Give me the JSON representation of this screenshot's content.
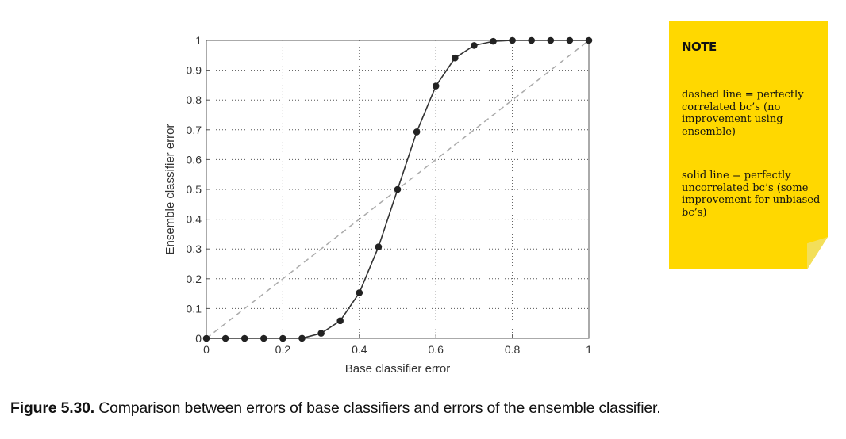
{
  "chart_data": {
    "type": "line",
    "xlabel": "Base classifier error",
    "ylabel": "Ensemble classifier error",
    "xlim": [
      0,
      1
    ],
    "ylim": [
      0,
      1
    ],
    "x_ticks": [
      0,
      0.2,
      0.4,
      0.6,
      0.8,
      1
    ],
    "x_tick_labels": [
      "0",
      "0.2",
      "0.4",
      "0.6",
      "0.8",
      "1"
    ],
    "y_ticks": [
      0,
      0.1,
      0.2,
      0.3,
      0.4,
      0.5,
      0.6,
      0.7,
      0.8,
      0.9,
      1
    ],
    "y_tick_labels": [
      "0",
      "0.1",
      "0.2",
      "0.3",
      "0.4",
      "0.5",
      "0.6",
      "0.7",
      "0.8",
      "0.9",
      "1"
    ],
    "grid": true,
    "series": [
      {
        "style": "solid-with-markers",
        "color": "#333333",
        "x": [
          0,
          0.05,
          0.1,
          0.15,
          0.2,
          0.25,
          0.3,
          0.35,
          0.4,
          0.45,
          0.5,
          0.55,
          0.6,
          0.65,
          0.7,
          0.75,
          0.8,
          0.85,
          0.9,
          0.95,
          1
        ],
        "y": [
          0,
          0,
          0,
          0,
          0,
          0.0003,
          0.017,
          0.059,
          0.153,
          0.307,
          0.5,
          0.693,
          0.847,
          0.941,
          0.983,
          0.997,
          1,
          1,
          1,
          1,
          1
        ]
      },
      {
        "style": "dashed",
        "color": "#aaaaaa",
        "x": [
          0,
          1
        ],
        "y": [
          0,
          1
        ]
      }
    ]
  },
  "note": {
    "title": "NOTE",
    "paragraph1": "dashed line = perfectly correlated bc’s (no improvement using ensemble)",
    "paragraph2": "solid line = perfectly uncorrelated bc’s (some improvement for unbiased bc’s)",
    "color": "#ffd800"
  },
  "caption": {
    "figure_label": "Figure 5.30.",
    "text": "Comparison between errors of base classifiers and errors of the ensemble classifier."
  }
}
